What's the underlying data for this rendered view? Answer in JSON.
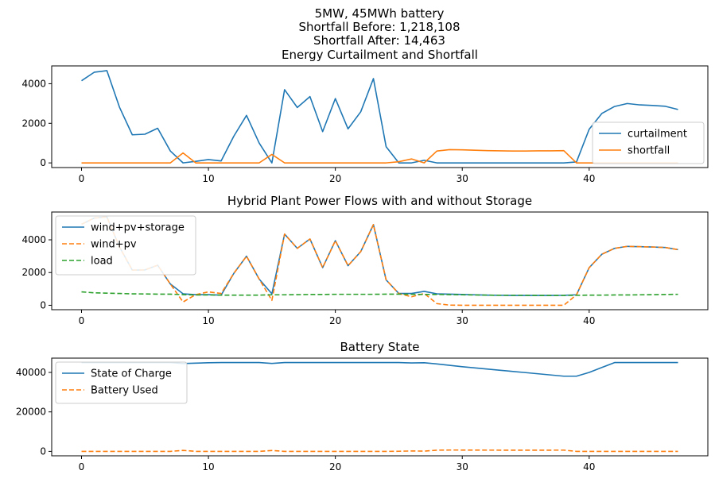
{
  "figure": {
    "header": [
      "5MW, 45MWh battery",
      "Shortfall Before: 1,218,108",
      "Shortfall After: 14,463"
    ]
  },
  "chart_data": [
    {
      "type": "line",
      "title": "Energy Curtailment and Shortfall",
      "xlabel": "",
      "ylabel": "",
      "xlim": [
        -2.35,
        49.35
      ],
      "ylim": [
        -235,
        4900
      ],
      "xticks": [
        0,
        10,
        20,
        30,
        40
      ],
      "yticks": [
        0,
        2000,
        4000
      ],
      "ytick_labels": [
        "0",
        "2000",
        "4000"
      ],
      "grid": false,
      "legend": "lower right",
      "x": [
        0,
        1,
        2,
        3,
        4,
        5,
        6,
        7,
        8,
        9,
        10,
        11,
        12,
        13,
        14,
        15,
        16,
        17,
        18,
        19,
        20,
        21,
        22,
        23,
        24,
        25,
        26,
        27,
        28,
        29,
        30,
        31,
        32,
        33,
        34,
        35,
        36,
        37,
        38,
        39,
        40,
        41,
        42,
        43,
        44,
        45,
        46,
        47
      ],
      "series": [
        {
          "name": "curtailment",
          "color": "#1f77b4",
          "dash": "solid",
          "values": [
            4150,
            4580,
            4660,
            2800,
            1420,
            1450,
            1750,
            600,
            0,
            80,
            170,
            100,
            1350,
            2400,
            1000,
            0,
            3700,
            2800,
            3350,
            1580,
            3250,
            1720,
            2580,
            4260,
            820,
            0,
            0,
            130,
            0,
            0,
            0,
            0,
            0,
            0,
            0,
            0,
            0,
            0,
            0,
            50,
            1700,
            2500,
            2850,
            3000,
            2930,
            2900,
            2860,
            2700
          ]
        },
        {
          "name": "shortfall",
          "color": "#ff7f0e",
          "dash": "solid",
          "values": [
            0,
            0,
            0,
            0,
            0,
            0,
            0,
            0,
            500,
            0,
            0,
            0,
            0,
            0,
            0,
            430,
            0,
            0,
            0,
            0,
            0,
            0,
            0,
            0,
            0,
            60,
            200,
            0,
            600,
            670,
            660,
            640,
            620,
            610,
            600,
            600,
            610,
            610,
            620,
            0,
            0,
            0,
            0,
            0,
            0,
            0,
            0,
            0
          ]
        }
      ]
    },
    {
      "type": "line",
      "title": "Hybrid Plant Power Flows with and without Storage",
      "xlabel": "",
      "ylabel": "",
      "xlim": [
        -2.35,
        49.35
      ],
      "ylim": [
        -270,
        5700
      ],
      "xticks": [
        0,
        10,
        20,
        30,
        40
      ],
      "yticks": [
        0,
        2000,
        4000
      ],
      "ytick_labels": [
        "0",
        "2000",
        "4000"
      ],
      "grid": false,
      "legend": "upper left",
      "x": [
        0,
        1,
        2,
        3,
        4,
        5,
        6,
        7,
        8,
        9,
        10,
        11,
        12,
        13,
        14,
        15,
        16,
        17,
        18,
        19,
        20,
        21,
        22,
        23,
        24,
        25,
        26,
        27,
        28,
        29,
        30,
        31,
        32,
        33,
        34,
        35,
        36,
        37,
        38,
        39,
        40,
        41,
        42,
        43,
        44,
        45,
        46,
        47
      ],
      "series": [
        {
          "name": "wind+pv+storage",
          "color": "#1f77b4",
          "dash": "solid",
          "values": [
            4950,
            5330,
            5400,
            3550,
            2150,
            2160,
            2450,
            1300,
            700,
            650,
            650,
            620,
            1950,
            3000,
            1600,
            700,
            4350,
            3480,
            4050,
            2300,
            3950,
            2420,
            3280,
            4930,
            1550,
            720,
            720,
            850,
            700,
            680,
            660,
            640,
            620,
            610,
            600,
            600,
            600,
            600,
            610,
            640,
            2300,
            3120,
            3480,
            3600,
            3580,
            3560,
            3530,
            3400
          ]
        },
        {
          "name": "wind+pv",
          "color": "#ff7f0e",
          "dash": "dashed",
          "values": [
            4950,
            5330,
            5400,
            3550,
            2150,
            2160,
            2450,
            1300,
            200,
            650,
            820,
            720,
            1950,
            3000,
            1600,
            300,
            4350,
            3480,
            4050,
            2300,
            3950,
            2420,
            3280,
            4930,
            1550,
            720,
            520,
            720,
            100,
            10,
            0,
            0,
            0,
            0,
            0,
            0,
            0,
            0,
            0,
            640,
            2300,
            3120,
            3480,
            3600,
            3580,
            3560,
            3530,
            3400
          ]
        },
        {
          "name": "load",
          "color": "#2ca02c",
          "dash": "dashed",
          "values": [
            820,
            760,
            740,
            720,
            700,
            690,
            680,
            680,
            650,
            630,
            630,
            620,
            620,
            620,
            620,
            640,
            640,
            650,
            660,
            660,
            670,
            670,
            670,
            670,
            680,
            680,
            670,
            660,
            660,
            650,
            640,
            630,
            620,
            610,
            610,
            610,
            600,
            600,
            600,
            610,
            620,
            620,
            630,
            630,
            640,
            650,
            660,
            670
          ]
        }
      ]
    },
    {
      "type": "line",
      "title": "Battery State",
      "xlabel": "",
      "ylabel": "",
      "xlim": [
        -2.35,
        49.35
      ],
      "ylim": [
        -2250,
        47250
      ],
      "xticks": [
        0,
        10,
        20,
        30,
        40
      ],
      "yticks": [
        0,
        20000,
        40000
      ],
      "ytick_labels": [
        "0",
        "20000",
        "40000"
      ],
      "grid": false,
      "legend": "upper left",
      "x": [
        0,
        1,
        2,
        3,
        4,
        5,
        6,
        7,
        8,
        9,
        10,
        11,
        12,
        13,
        14,
        15,
        16,
        17,
        18,
        19,
        20,
        21,
        22,
        23,
        24,
        25,
        26,
        27,
        28,
        29,
        30,
        31,
        32,
        33,
        34,
        35,
        36,
        37,
        38,
        39,
        40,
        41,
        42,
        43,
        44,
        45,
        46,
        47
      ],
      "series": [
        {
          "name": "State of Charge",
          "color": "#1f77b4",
          "dash": "solid",
          "values": [
            45000,
            45000,
            45000,
            45000,
            45000,
            45000,
            45000,
            45000,
            44500,
            44700,
            44900,
            45000,
            45000,
            45000,
            45000,
            44570,
            45000,
            45000,
            45000,
            45000,
            45000,
            45000,
            45000,
            45000,
            45000,
            45000,
            44800,
            44900,
            44300,
            43600,
            42900,
            42300,
            41700,
            41100,
            40500,
            39900,
            39300,
            38700,
            38100,
            38100,
            40000,
            42500,
            45000,
            45000,
            45000,
            45000,
            45000,
            45000
          ]
        },
        {
          "name": "Battery Used",
          "color": "#ff7f0e",
          "dash": "dashed",
          "values": [
            0,
            0,
            0,
            0,
            0,
            0,
            0,
            0,
            500,
            0,
            0,
            0,
            0,
            0,
            0,
            430,
            0,
            0,
            0,
            0,
            0,
            0,
            0,
            0,
            0,
            60,
            200,
            130,
            600,
            670,
            660,
            640,
            620,
            610,
            600,
            600,
            610,
            610,
            620,
            0,
            0,
            0,
            0,
            0,
            0,
            0,
            0,
            0
          ]
        }
      ]
    }
  ]
}
